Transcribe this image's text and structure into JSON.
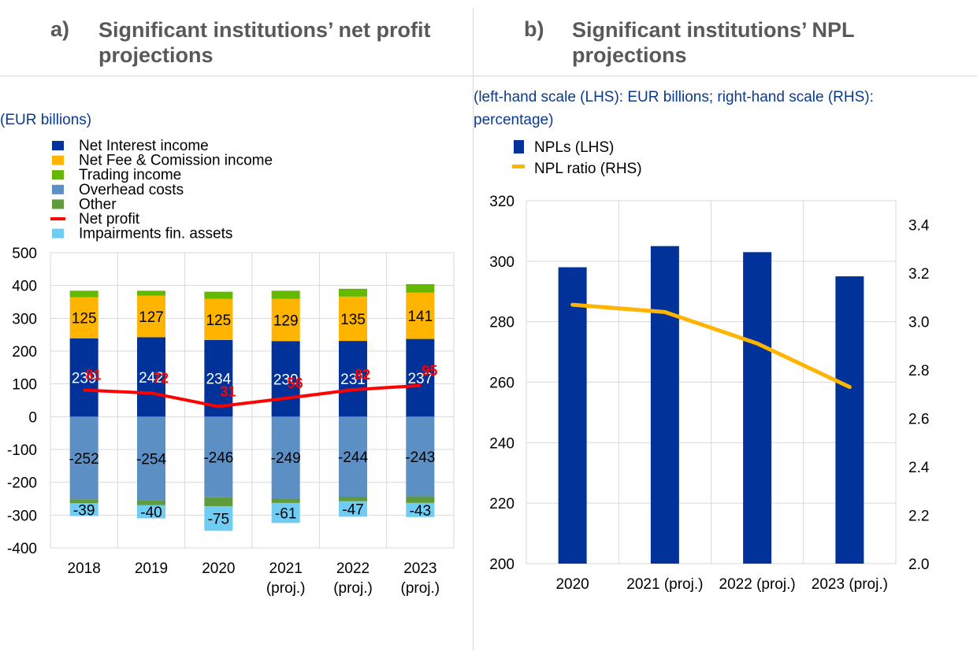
{
  "panel_a": {
    "letter": "a)",
    "title_line1": "Significant institutions’ net profit",
    "title_line2": "projections",
    "unit": "(EUR billions)"
  },
  "panel_b": {
    "letter": "b)",
    "title_line1": "Significant institutions’ NPL",
    "title_line2": "projections",
    "unit_line1": "(left-hand scale (LHS): EUR billions; right-hand scale (RHS):",
    "unit_line2": "percentage)"
  },
  "colors": {
    "net_interest": "#003299",
    "fee": "#ffb400",
    "trading": "#65b800",
    "overhead": "#5c8fc4",
    "other": "#5f9a3e",
    "impairments": "#6fcdf4",
    "net_profit": "#ff0000",
    "npl_bar": "#003299",
    "npl_ratio": "#ffb400",
    "grid": "#d9d9d9"
  },
  "chart_data": [
    {
      "type": "bar",
      "stacked": true,
      "categories": [
        [
          "2018"
        ],
        [
          "2019"
        ],
        [
          "2020"
        ],
        [
          "2021",
          "(proj.)"
        ],
        [
          "2022",
          "(proj.)"
        ],
        [
          "2023",
          "(proj.)"
        ]
      ],
      "ylim": [
        -400,
        500
      ],
      "yticks": [
        500,
        400,
        300,
        200,
        100,
        0,
        -100,
        -200,
        -300,
        -400
      ],
      "grid": true,
      "legend_position": "top-left",
      "series": [
        {
          "name": "Net Interest income",
          "key": "net_interest",
          "values": [
            239,
            242,
            234,
            230,
            231,
            237
          ],
          "labeled": true,
          "label_color": "#ffffff"
        },
        {
          "name": "Net Fee & Comission income",
          "key": "fee",
          "values": [
            125,
            127,
            125,
            129,
            135,
            141
          ],
          "labeled": true,
          "label_color": "#000000"
        },
        {
          "name": "Trading income",
          "key": "trading",
          "values": [
            20,
            15,
            22,
            25,
            24,
            26
          ],
          "labeled": false
        },
        {
          "name": "Overhead costs",
          "key": "overhead",
          "values": [
            -252,
            -254,
            -246,
            -249,
            -244,
            -243
          ],
          "labeled": true,
          "label_color": "#000000"
        },
        {
          "name": "Other",
          "key": "other",
          "values": [
            -12,
            -16,
            -27,
            -14,
            -14,
            -20
          ],
          "labeled": false
        },
        {
          "name": "Net profit",
          "key": "net_profit",
          "line": true,
          "values": [
            81,
            72,
            31,
            56,
            82,
            95
          ],
          "labeled": true,
          "label_color": "#ff0000"
        },
        {
          "name": "Impairments fin. assets",
          "key": "impairments",
          "values": [
            -39,
            -40,
            -75,
            -61,
            -47,
            -43
          ],
          "labeled": true,
          "label_color": "#000000"
        }
      ],
      "legend_order": [
        "net_interest",
        "fee",
        "trading",
        "overhead",
        "other",
        "net_profit",
        "impairments"
      ]
    },
    {
      "type": "bar",
      "categories": [
        "2020",
        "2021 (proj.)",
        "2022 (proj.)",
        "2023 (proj.)"
      ],
      "ylim": [
        200,
        320
      ],
      "yticks": [
        320,
        300,
        280,
        260,
        240,
        220,
        200
      ],
      "y2lim": [
        2.0,
        3.5
      ],
      "y2ticks": [
        "3.4",
        "3.2",
        "3.0",
        "2.8",
        "2.6",
        "2.4",
        "2.2",
        "2.0"
      ],
      "grid": true,
      "legend_position": "top-left",
      "series": [
        {
          "name": "NPLs (LHS)",
          "key": "npl_bar",
          "axis": "left",
          "values": [
            298,
            305,
            303,
            295
          ]
        },
        {
          "name": "NPL ratio (RHS)",
          "key": "npl_ratio",
          "axis": "right",
          "line": true,
          "values": [
            3.07,
            3.04,
            2.91,
            2.73
          ]
        }
      ]
    }
  ]
}
